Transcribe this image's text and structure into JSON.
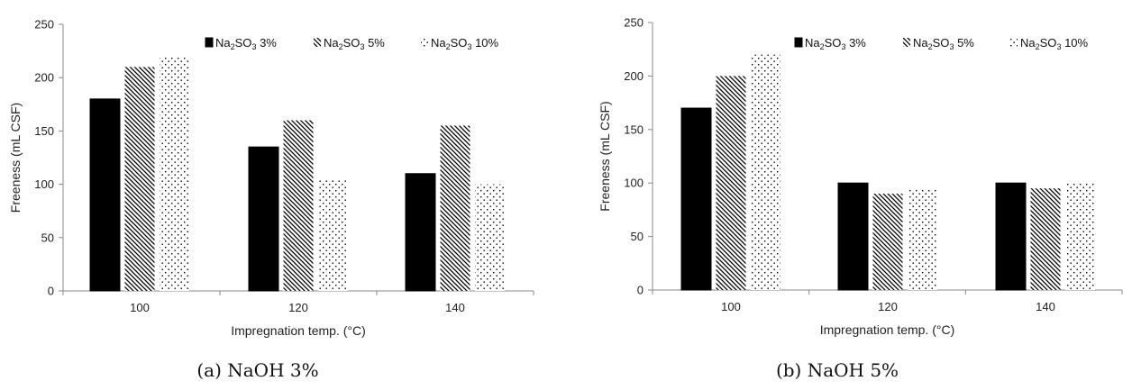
{
  "chart_data": [
    {
      "type": "bar",
      "caption": "(a) NaOH 3%",
      "categories": [
        "100",
        "120",
        "140"
      ],
      "series": [
        {
          "name": "Na2SO3 3%",
          "values": [
            180,
            135,
            110
          ]
        },
        {
          "name": "Na2SO3 5%",
          "values": [
            210,
            160,
            155
          ]
        },
        {
          "name": "Na2SO3 10%",
          "values": [
            220,
            105,
            100
          ]
        }
      ],
      "legend": [
        {
          "prefix": "Na",
          "sub": "2",
          "mid": "SO",
          "sub2": "3",
          "suffix": " 3%"
        },
        {
          "prefix": "Na",
          "sub": "2",
          "mid": "SO",
          "sub2": "3",
          "suffix": " 5%"
        },
        {
          "prefix": "Na",
          "sub": "2",
          "mid": "SO",
          "sub2": "3",
          "suffix": " 10%"
        }
      ],
      "xlabel": "Impregnation  temp. (°C)",
      "ylabel": "Freeness (mL CSF)",
      "ylim": [
        0,
        250
      ],
      "yticks": [
        "0",
        "50",
        "100",
        "150",
        "200",
        "250"
      ],
      "legend_position": "top-right",
      "grid": false
    },
    {
      "type": "bar",
      "caption": "(b) NaOH 5%",
      "categories": [
        "100",
        "120",
        "140"
      ],
      "series": [
        {
          "name": "Na2SO3 3%",
          "values": [
            170,
            100,
            100
          ]
        },
        {
          "name": "Na2SO3 5%",
          "values": [
            200,
            90,
            95
          ]
        },
        {
          "name": "Na2SO3 10%",
          "values": [
            220,
            95,
            100
          ]
        }
      ],
      "legend": [
        {
          "prefix": "Na",
          "sub": "2",
          "mid": "SO",
          "sub2": "3",
          "suffix": " 3%"
        },
        {
          "prefix": "Na",
          "sub": "2",
          "mid": "SO",
          "sub2": "3",
          "suffix": " 5%"
        },
        {
          "prefix": "Na",
          "sub": "2",
          "mid": "SO",
          "sub2": "3",
          "suffix": " 10%"
        }
      ],
      "xlabel": "Impregnation  temp. (°C)",
      "ylabel": "Freeness (mL CSF)",
      "ylim": [
        0,
        250
      ],
      "yticks": [
        "0",
        "50",
        "100",
        "150",
        "200",
        "250"
      ],
      "legend_position": "top-right",
      "grid": false
    }
  ]
}
